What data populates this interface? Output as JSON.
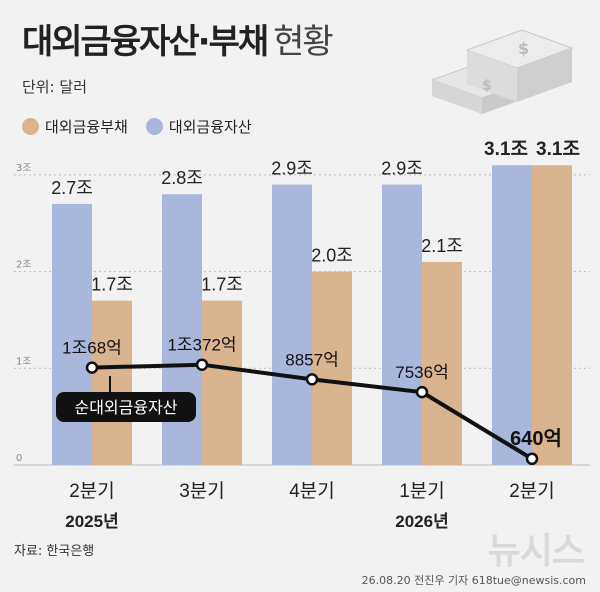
{
  "header": {
    "title": "대외금융자산·부채",
    "subtitle": "현황",
    "unit": "단위: 달러"
  },
  "legend": [
    {
      "label": "대외금융부채",
      "color": "#d9b48f"
    },
    {
      "label": "대외금융자산",
      "color": "#a9b7dc"
    }
  ],
  "chart_data": {
    "type": "bar",
    "categories": [
      "2분기",
      "3분기",
      "4분기",
      "1분기",
      "2분기"
    ],
    "category_years": [
      "2025년",
      "",
      "",
      "2026년",
      ""
    ],
    "y_ticks": [
      "0",
      "1조",
      "2조",
      "3조"
    ],
    "ylim": [
      0,
      3.1
    ],
    "series": [
      {
        "name": "대외금융자산",
        "color": "#a9b7dc",
        "values": [
          2.7,
          2.8,
          2.9,
          2.9,
          3.1
        ],
        "labels": [
          "2.7조",
          "2.8조",
          "2.9조",
          "2.9조",
          "3.1조"
        ]
      },
      {
        "name": "대외금융부채",
        "color": "#d9b48f",
        "values": [
          1.7,
          1.7,
          2.0,
          2.1,
          3.1
        ],
        "labels": [
          "1.7조",
          "1.7조",
          "2.0조",
          "2.1조",
          "3.1조"
        ]
      }
    ],
    "line": {
      "name": "순대외금융자산",
      "values": [
        1.0068,
        1.0372,
        0.8857,
        0.7536,
        0.064
      ],
      "labels": [
        "1조68억",
        "1조372억",
        "8857억",
        "7536억",
        "640억"
      ]
    }
  },
  "footer": {
    "source": "자료: 한국은행",
    "credit": "26.08.20 전진우 기자 618tue@newsis.com",
    "watermark": "뉴시스"
  }
}
